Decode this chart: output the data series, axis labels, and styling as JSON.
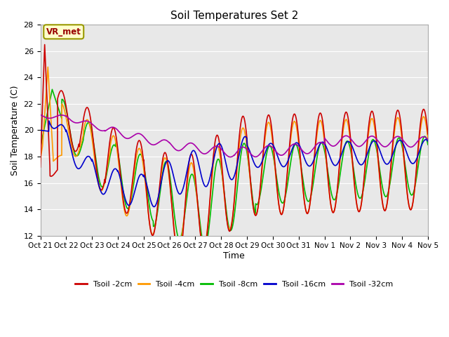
{
  "title": "Soil Temperatures Set 2",
  "xlabel": "Time",
  "ylabel": "Soil Temperature (C)",
  "ylim": [
    12,
    28
  ],
  "xlim": [
    0,
    360
  ],
  "background_color": "#e8e8e8",
  "annotation_text": "VR_met",
  "annotation_bg": "#ffffcc",
  "annotation_border": "#999900",
  "series_colors": [
    "#cc0000",
    "#ff9900",
    "#00bb00",
    "#0000cc",
    "#aa00aa"
  ],
  "series_labels": [
    "Tsoil -2cm",
    "Tsoil -4cm",
    "Tsoil -8cm",
    "Tsoil -16cm",
    "Tsoil -32cm"
  ],
  "xtick_labels": [
    "Oct 21",
    "Oct 22",
    "Oct 23",
    "Oct 24",
    "Oct 25",
    "Oct 26",
    "Oct 27",
    "Oct 28",
    "Oct 29",
    "Oct 30",
    "Oct 31",
    "Nov 1",
    "Nov 2",
    "Nov 3",
    "Nov 4",
    "Nov 5"
  ],
  "xtick_positions": [
    0,
    24,
    48,
    72,
    96,
    120,
    144,
    168,
    192,
    216,
    240,
    264,
    288,
    312,
    336,
    360
  ],
  "ytick_positions": [
    12,
    14,
    16,
    18,
    20,
    22,
    24,
    26,
    28
  ],
  "grid_color": "#ffffff",
  "linewidth": 1.2,
  "num_points": 2161
}
